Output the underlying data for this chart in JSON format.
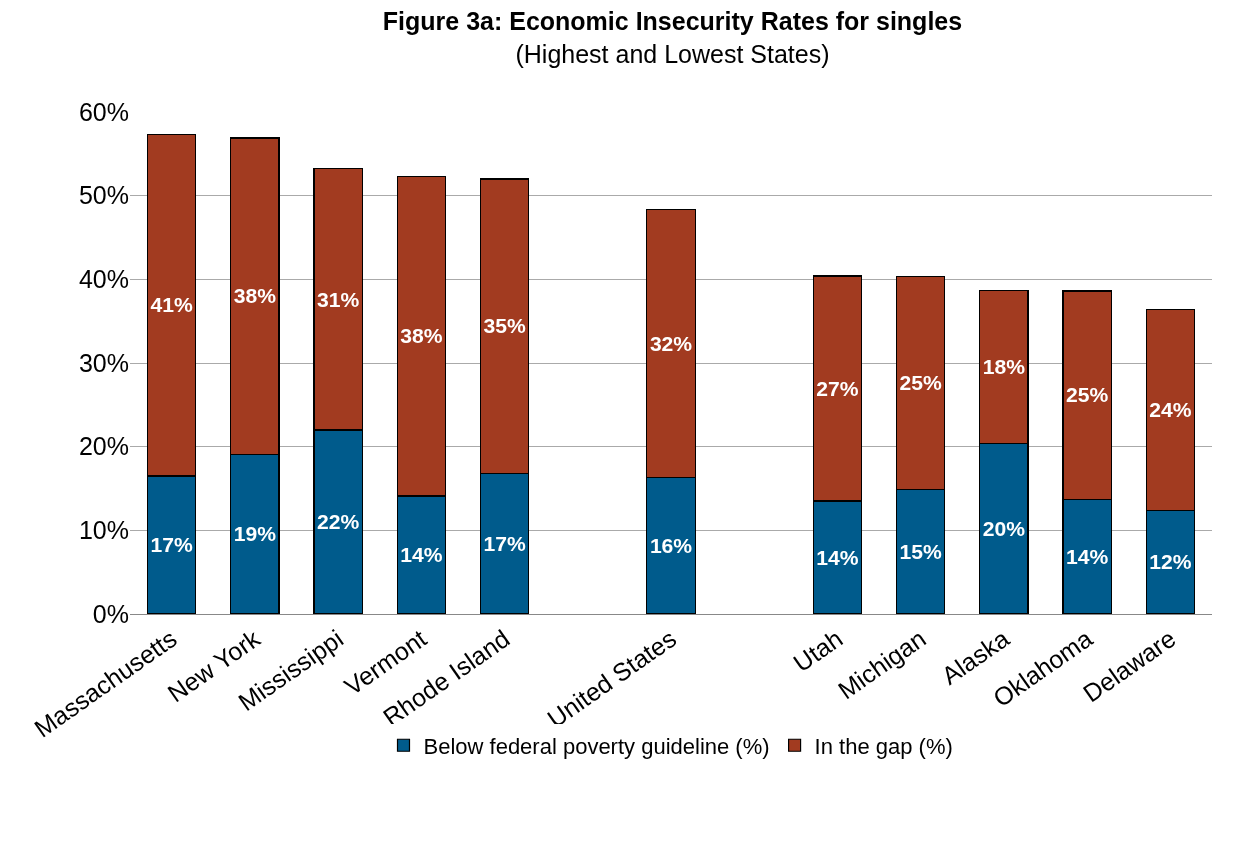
{
  "chart_data": {
    "type": "bar",
    "title": "Figure 3a: Economic Insecurity Rates for singles",
    "subtitle": "(Highest and Lowest States)",
    "categories": [
      "Massachusetts",
      "New York",
      "Mississippi",
      "Vermont",
      "Rhode Island",
      null,
      "United States",
      null,
      "Utah",
      "Michigan",
      "Alaska",
      "Oklahoma",
      "Delaware"
    ],
    "series": [
      {
        "name": "Below federal poverty guideline (%)",
        "color": "#005b8c",
        "values": [
          16.5,
          19.1,
          22.0,
          14.1,
          16.8,
          null,
          16.3,
          null,
          13.5,
          14.9,
          20.4,
          13.7,
          12.4
        ],
        "value_labels": [
          "17%",
          "19%",
          "22%",
          "14%",
          "17%",
          null,
          "16%",
          null,
          "14%",
          "15%",
          "20%",
          "14%",
          "12%"
        ]
      },
      {
        "name": "In the gap (%)",
        "color": "#a23b20",
        "values": [
          40.8,
          37.8,
          31.2,
          38.2,
          35.2,
          null,
          32.0,
          null,
          26.9,
          25.4,
          18.3,
          24.9,
          24.0
        ],
        "value_labels": [
          "41%",
          "38%",
          "31%",
          "38%",
          "35%",
          null,
          "32%",
          null,
          "27%",
          "25%",
          "18%",
          "25%",
          "24%"
        ]
      }
    ],
    "stacked": true,
    "ylim": [
      0,
      60
    ],
    "yticks": [
      {
        "value": 0,
        "label": "0%"
      },
      {
        "value": 10,
        "label": "10%"
      },
      {
        "value": 20,
        "label": "20%"
      },
      {
        "value": 30,
        "label": "30%"
      },
      {
        "value": 40,
        "label": "40%"
      },
      {
        "value": 50,
        "label": "50%"
      },
      {
        "value": 60,
        "label": "60%"
      }
    ],
    "grid": "y",
    "legend": "bottom"
  }
}
